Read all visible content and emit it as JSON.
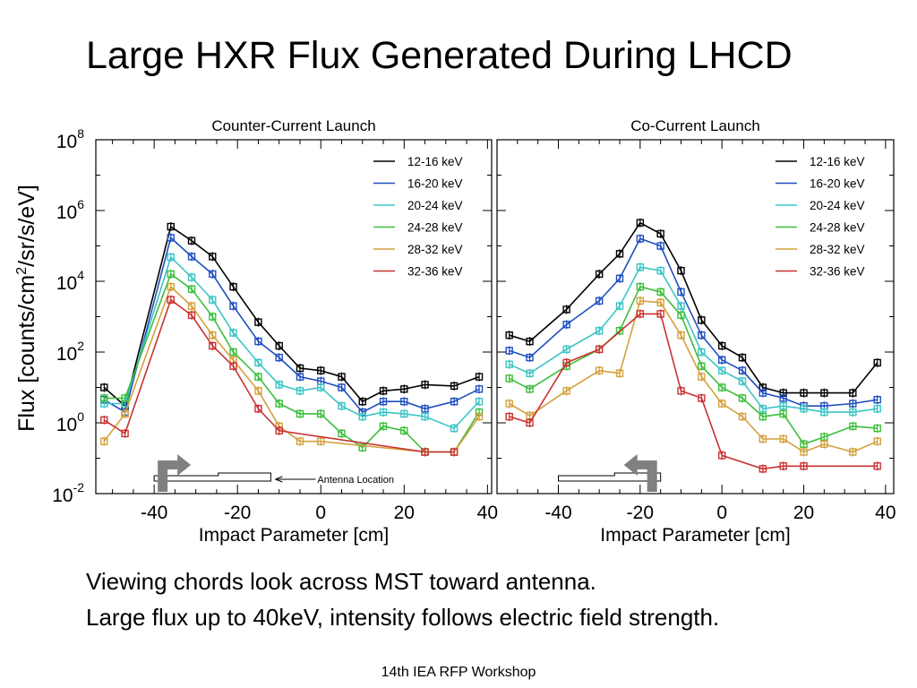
{
  "slide": {
    "title": "Large HXR Flux Generated During LHCD",
    "captions": [
      "Viewing chords look across MST toward antenna.",
      "Large flux up to 40keV, intensity follows electric field strength."
    ],
    "footer": "14th IEA RFP Workshop"
  },
  "shared": {
    "ylabel_parts": [
      "Flux [counts/cm",
      "2",
      "/sr/s/eV]"
    ],
    "y_scale": "log",
    "ylim": [
      0.01,
      100000000
    ],
    "y_ticks": [
      {
        "base": "10",
        "exp": "8",
        "value": 100000000
      },
      {
        "base": "10",
        "exp": "6",
        "value": 1000000
      },
      {
        "base": "10",
        "exp": "4",
        "value": 10000
      },
      {
        "base": "10",
        "exp": "2",
        "value": 100
      },
      {
        "base": "10",
        "exp": "0",
        "value": 1
      },
      {
        "base": "10",
        "exp": "-2",
        "value": 0.01
      }
    ],
    "legend_position": "top-right",
    "series_colors": [
      "#000000",
      "#1f4fbf",
      "#3cc4c4",
      "#3cbe3c",
      "#d4a03c",
      "#c83232"
    ]
  },
  "chart_data": [
    {
      "type": "line",
      "title": "Counter-Current Launch",
      "xlabel": "Impact Parameter [cm]",
      "xlim": [
        -54,
        41
      ],
      "x_ticks": [
        "-40",
        "-20",
        "0",
        "20",
        "40"
      ],
      "x_tick_values": [
        -40,
        -20,
        0,
        20,
        40
      ],
      "antenna": {
        "label": "Antenna Location",
        "x_from": -40,
        "x_to": -12
      },
      "series": [
        {
          "name": "12-16 keV",
          "points": [
            [
              -52,
              10
            ],
            [
              -47,
              3
            ],
            [
              -36,
              350000
            ],
            [
              -31,
              140000
            ],
            [
              -26,
              50000
            ],
            [
              -21,
              7000
            ],
            [
              -15,
              700
            ],
            [
              -10,
              150
            ],
            [
              -5,
              35
            ],
            [
              0,
              30
            ],
            [
              5,
              20
            ],
            [
              10,
              4
            ],
            [
              15,
              8
            ],
            [
              20,
              9
            ],
            [
              25,
              12
            ],
            [
              32,
              11
            ],
            [
              38,
              20
            ]
          ]
        },
        {
          "name": "16-20 keV",
          "points": [
            [
              -52,
              4.5
            ],
            [
              -47,
              2
            ],
            [
              -36,
              170000
            ],
            [
              -31,
              50000
            ],
            [
              -26,
              16000
            ],
            [
              -21,
              2000
            ],
            [
              -15,
              200
            ],
            [
              -10,
              70
            ],
            [
              -5,
              20
            ],
            [
              0,
              15
            ],
            [
              5,
              10
            ],
            [
              10,
              2
            ],
            [
              15,
              4
            ],
            [
              20,
              4
            ],
            [
              25,
              2.5
            ],
            [
              32,
              4
            ],
            [
              38,
              9
            ]
          ]
        },
        {
          "name": "20-24 keV",
          "points": [
            [
              -52,
              3.5
            ],
            [
              -47,
              3.5
            ],
            [
              -36,
              48000
            ],
            [
              -31,
              13000
            ],
            [
              -26,
              3000
            ],
            [
              -21,
              350
            ],
            [
              -15,
              50
            ],
            [
              -10,
              12
            ],
            [
              -5,
              8
            ],
            [
              0,
              10
            ],
            [
              5,
              3
            ],
            [
              10,
              1.5
            ],
            [
              15,
              2
            ],
            [
              20,
              1.8
            ],
            [
              25,
              1.5
            ],
            [
              32,
              0.7
            ],
            [
              38,
              4
            ]
          ]
        },
        {
          "name": "24-28 keV",
          "points": [
            [
              -52,
              5
            ],
            [
              -47,
              5
            ],
            [
              -36,
              16000
            ],
            [
              -31,
              6000
            ],
            [
              -26,
              1000
            ],
            [
              -21,
              100
            ],
            [
              -15,
              20
            ],
            [
              -10,
              3.5
            ],
            [
              -5,
              1.8
            ],
            [
              0,
              1.8
            ],
            [
              5,
              0.5
            ],
            [
              10,
              0.2
            ],
            [
              15,
              0.8
            ],
            [
              20,
              0.6
            ],
            [
              25,
              0.15
            ],
            [
              32,
              0.15
            ],
            [
              38,
              2
            ]
          ]
        },
        {
          "name": "28-32 keV",
          "points": [
            [
              -52,
              0.3
            ],
            [
              -47,
              1.8
            ],
            [
              -36,
              7000
            ],
            [
              -31,
              2000
            ],
            [
              -26,
              300
            ],
            [
              -21,
              60
            ],
            [
              -15,
              8
            ],
            [
              -10,
              0.8
            ],
            [
              -5,
              0.3
            ],
            [
              0,
              0.3
            ],
            [
              25,
              0.15
            ],
            [
              32,
              0.15
            ],
            [
              38,
              1.5
            ]
          ]
        },
        {
          "name": "32-36 keV",
          "points": [
            [
              -52,
              1.2
            ],
            [
              -47,
              0.5
            ],
            [
              -36,
              3000
            ],
            [
              -31,
              1100
            ],
            [
              -26,
              150
            ],
            [
              -21,
              40
            ],
            [
              -15,
              2.5
            ],
            [
              -10,
              0.6
            ],
            [
              25,
              0.15
            ],
            [
              32,
              0.15
            ]
          ]
        }
      ]
    },
    {
      "type": "line",
      "title": "Co-Current Launch",
      "xlabel": "Impact Parameter [cm]",
      "xlim": [
        -55,
        42
      ],
      "x_ticks": [
        "-40",
        "-20",
        "0",
        "20",
        "40"
      ],
      "x_tick_values": [
        -40,
        -20,
        0,
        20,
        40
      ],
      "antenna": {
        "x_from": -40,
        "x_to": -15
      },
      "series": [
        {
          "name": "12-16 keV",
          "points": [
            [
              -52,
              300
            ],
            [
              -47,
              200
            ],
            [
              -38,
              1600
            ],
            [
              -30,
              16000
            ],
            [
              -25,
              60000
            ],
            [
              -20,
              450000
            ],
            [
              -15,
              220000
            ],
            [
              -10,
              20000
            ],
            [
              -5,
              800
            ],
            [
              0,
              150
            ],
            [
              5,
              70
            ],
            [
              10,
              10
            ],
            [
              15,
              7
            ],
            [
              20,
              7
            ],
            [
              25,
              7
            ],
            [
              32,
              7
            ],
            [
              38,
              50
            ]
          ]
        },
        {
          "name": "16-20 keV",
          "points": [
            [
              -52,
              110
            ],
            [
              -47,
              70
            ],
            [
              -38,
              600
            ],
            [
              -30,
              2800
            ],
            [
              -25,
              12000
            ],
            [
              -20,
              160000
            ],
            [
              -15,
              100000
            ],
            [
              -10,
              5000
            ],
            [
              -5,
              300
            ],
            [
              0,
              60
            ],
            [
              5,
              30
            ],
            [
              10,
              7
            ],
            [
              15,
              5
            ],
            [
              20,
              3
            ],
            [
              25,
              3
            ],
            [
              32,
              3.5
            ],
            [
              38,
              4.5
            ]
          ]
        },
        {
          "name": "20-24 keV",
          "points": [
            [
              -52,
              45
            ],
            [
              -47,
              25
            ],
            [
              -38,
              120
            ],
            [
              -30,
              400
            ],
            [
              -25,
              2000
            ],
            [
              -20,
              25000
            ],
            [
              -15,
              20000
            ],
            [
              -10,
              2000
            ],
            [
              -5,
              100
            ],
            [
              0,
              30
            ],
            [
              5,
              15
            ],
            [
              10,
              2.5
            ],
            [
              15,
              3
            ],
            [
              20,
              2.5
            ],
            [
              25,
              2
            ],
            [
              32,
              2
            ],
            [
              38,
              2.5
            ]
          ]
        },
        {
          "name": "24-28 keV",
          "points": [
            [
              -52,
              18
            ],
            [
              -47,
              9
            ],
            [
              -38,
              40
            ],
            [
              -30,
              120
            ],
            [
              -25,
              400
            ],
            [
              -20,
              7000
            ],
            [
              -15,
              5000
            ],
            [
              -10,
              1100
            ],
            [
              -5,
              40
            ],
            [
              0,
              10
            ],
            [
              5,
              5
            ],
            [
              10,
              1.5
            ],
            [
              15,
              1.8
            ],
            [
              20,
              0.25
            ],
            [
              25,
              0.4
            ],
            [
              32,
              0.8
            ],
            [
              38,
              0.7
            ]
          ]
        },
        {
          "name": "28-32 keV",
          "points": [
            [
              -52,
              3.5
            ],
            [
              -47,
              1.6
            ],
            [
              -38,
              8
            ],
            [
              -30,
              30
            ],
            [
              -25,
              25
            ],
            [
              -20,
              2800
            ],
            [
              -15,
              2500
            ],
            [
              -10,
              300
            ],
            [
              -5,
              20
            ],
            [
              0,
              3.5
            ],
            [
              5,
              1.5
            ],
            [
              10,
              0.35
            ],
            [
              15,
              0.35
            ],
            [
              20,
              0.15
            ],
            [
              25,
              0.25
            ],
            [
              32,
              0.15
            ],
            [
              38,
              0.3
            ]
          ]
        },
        {
          "name": "32-36 keV",
          "points": [
            [
              -52,
              1.5
            ],
            [
              -47,
              1
            ],
            [
              -38,
              50
            ],
            [
              -30,
              120
            ],
            [
              -20,
              1200
            ],
            [
              -15,
              1200
            ],
            [
              -10,
              8
            ],
            [
              -5,
              5
            ],
            [
              0,
              0.12
            ],
            [
              10,
              0.05
            ],
            [
              15,
              0.06
            ],
            [
              20,
              0.06
            ],
            [
              38,
              0.06
            ]
          ]
        }
      ]
    }
  ]
}
